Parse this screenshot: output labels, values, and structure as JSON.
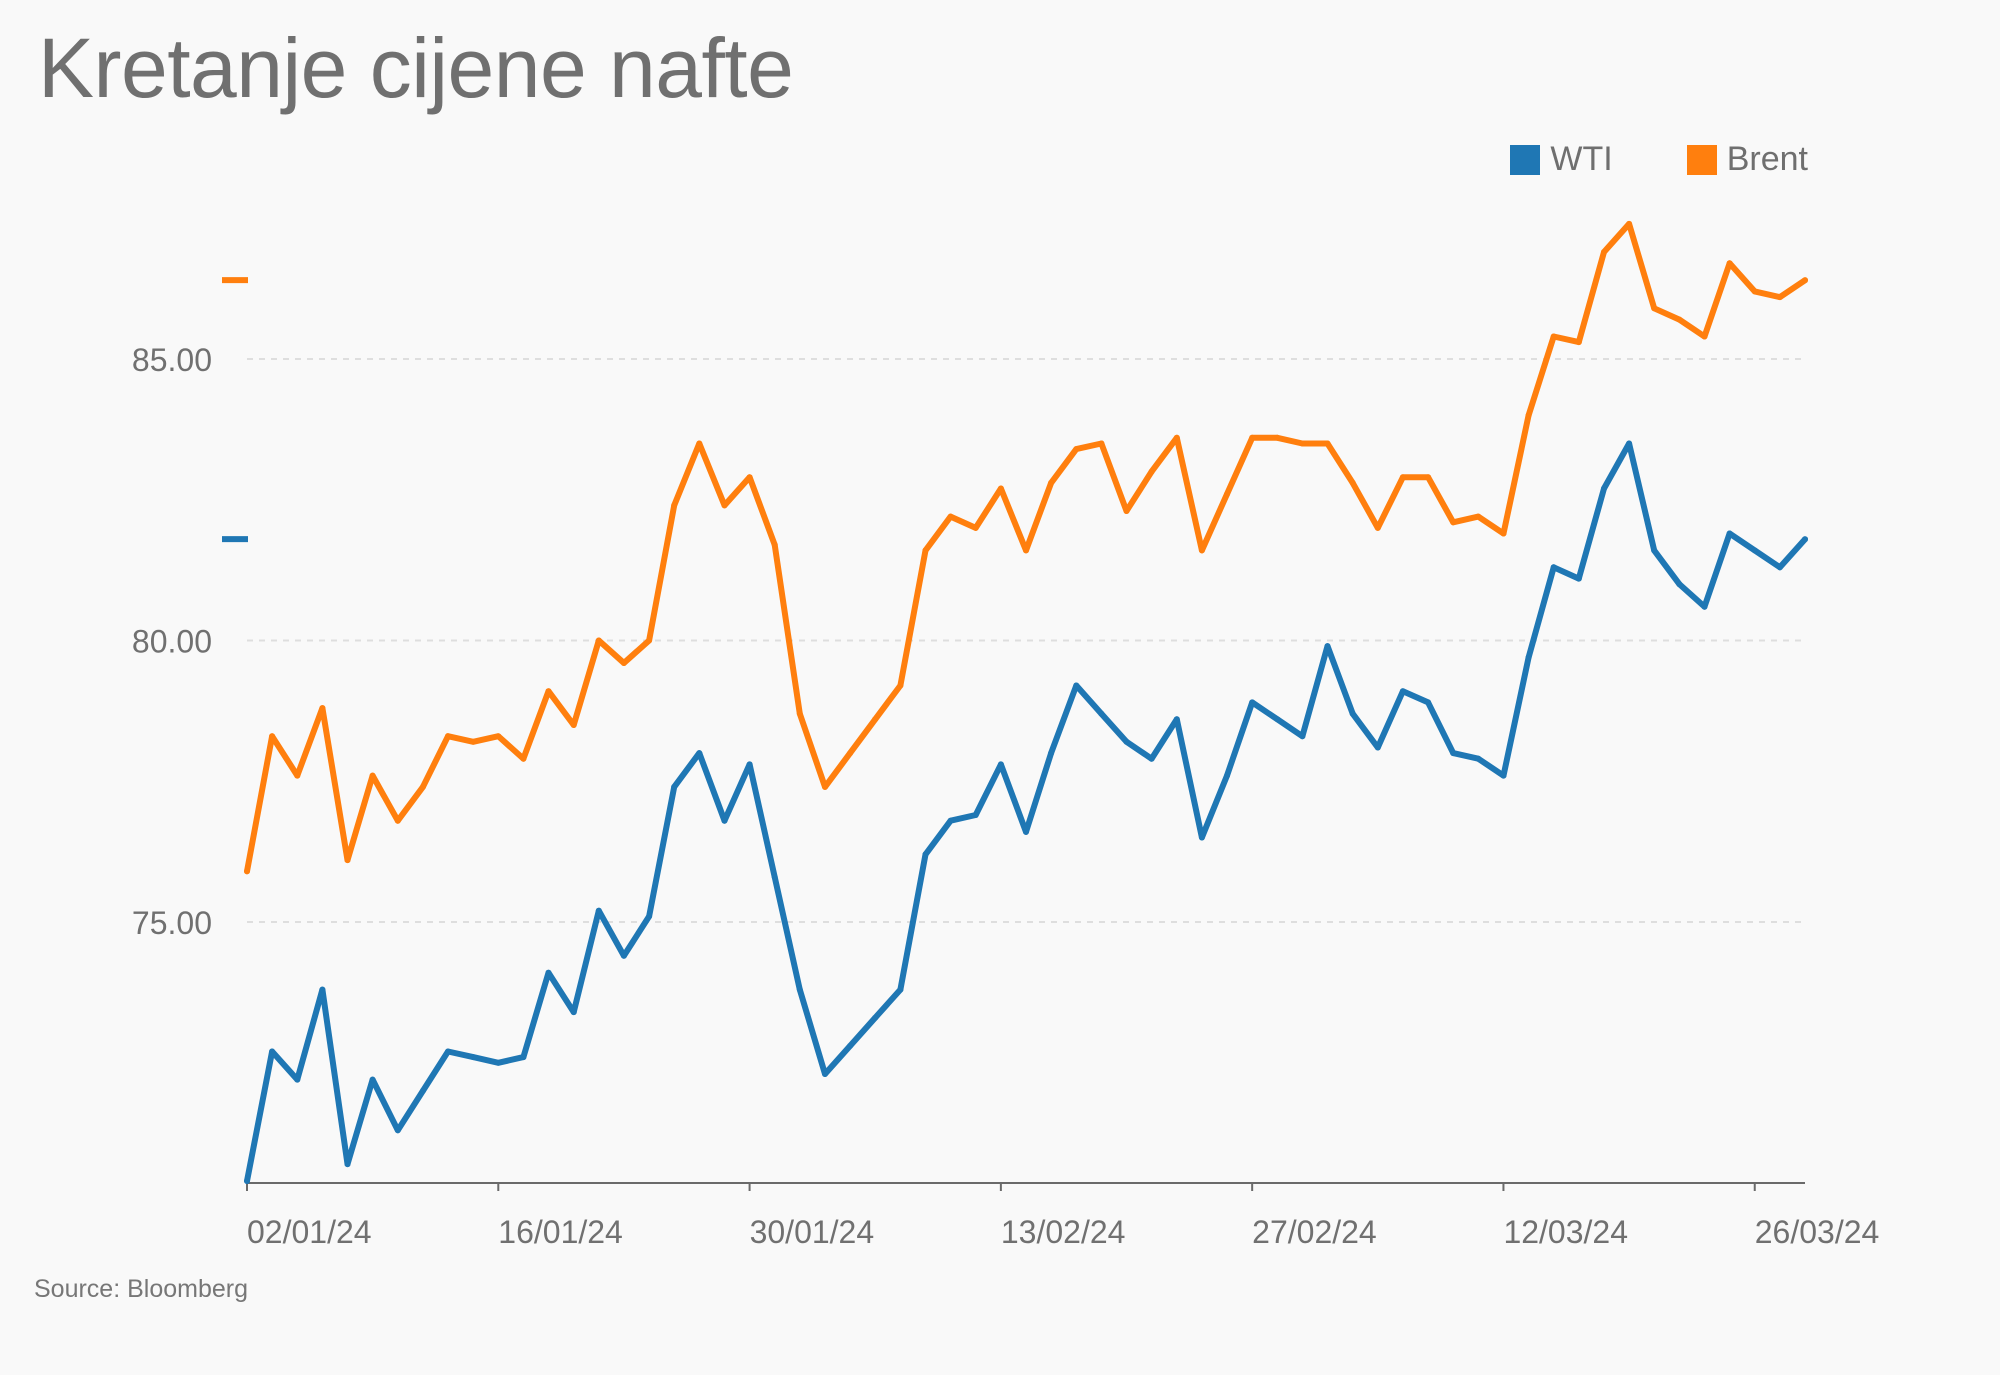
{
  "title": "Kretanje cijene nafte",
  "source": "Source: Bloomberg",
  "legend": [
    {
      "name": "WTI",
      "color": "#1f77b4"
    },
    {
      "name": "Brent",
      "color": "#ff7f0e"
    }
  ],
  "chart_data": {
    "type": "line",
    "title": "Kretanje cijene nafte",
    "xlabel": "",
    "ylabel": "",
    "ylim": [
      70.3,
      87.8
    ],
    "y_ticks": [
      "75.00",
      "80.00",
      "85.00"
    ],
    "y_tick_values": [
      75,
      80,
      85
    ],
    "grid": "horizontal dashed",
    "legend_position": "top-right",
    "x_tick_labels": [
      "02/01/24",
      "16/01/24",
      "30/01/24",
      "13/02/24",
      "27/02/24",
      "12/03/24",
      "26/03/24"
    ],
    "x_tick_index": [
      0,
      10,
      20,
      30,
      40,
      50,
      60
    ],
    "last_value_markers": [
      {
        "series": "Brent",
        "value": 86.4
      },
      {
        "series": "WTI",
        "value": 81.8
      }
    ],
    "series": [
      {
        "name": "WTI",
        "color": "#1f77b4",
        "values": [
          70.4,
          72.7,
          72.2,
          73.8,
          70.7,
          72.2,
          71.3,
          72.0,
          72.7,
          72.6,
          72.5,
          72.6,
          74.1,
          73.4,
          75.2,
          74.4,
          75.1,
          77.4,
          78.0,
          76.8,
          77.8,
          75.8,
          73.8,
          72.3,
          72.8,
          73.3,
          73.8,
          76.2,
          76.8,
          76.9,
          77.8,
          76.6,
          78.0,
          79.2,
          78.7,
          78.2,
          77.9,
          78.6,
          76.5,
          77.6,
          78.9,
          78.6,
          78.3,
          79.9,
          78.7,
          78.1,
          79.1,
          78.9,
          78.0,
          77.9,
          77.6,
          79.7,
          81.3,
          81.1,
          82.7,
          83.5,
          81.6,
          81.0,
          80.6,
          81.9,
          81.6,
          81.3,
          81.8
        ]
      },
      {
        "name": "Brent",
        "color": "#ff7f0e",
        "values": [
          75.9,
          78.3,
          77.6,
          78.8,
          76.1,
          77.6,
          76.8,
          77.4,
          78.3,
          78.2,
          78.3,
          77.9,
          79.1,
          78.5,
          80.0,
          79.6,
          80.0,
          82.4,
          83.5,
          82.4,
          82.9,
          81.7,
          78.7,
          77.4,
          78.0,
          78.6,
          79.2,
          81.6,
          82.2,
          82.0,
          82.7,
          81.6,
          82.8,
          83.4,
          83.5,
          82.3,
          83.0,
          83.6,
          81.6,
          82.6,
          83.6,
          83.6,
          83.5,
          83.5,
          82.8,
          82.0,
          82.9,
          82.9,
          82.1,
          82.2,
          81.9,
          84.0,
          85.4,
          85.3,
          86.9,
          87.4,
          85.9,
          85.7,
          85.4,
          86.7,
          86.2,
          86.1,
          86.4
        ]
      }
    ]
  }
}
